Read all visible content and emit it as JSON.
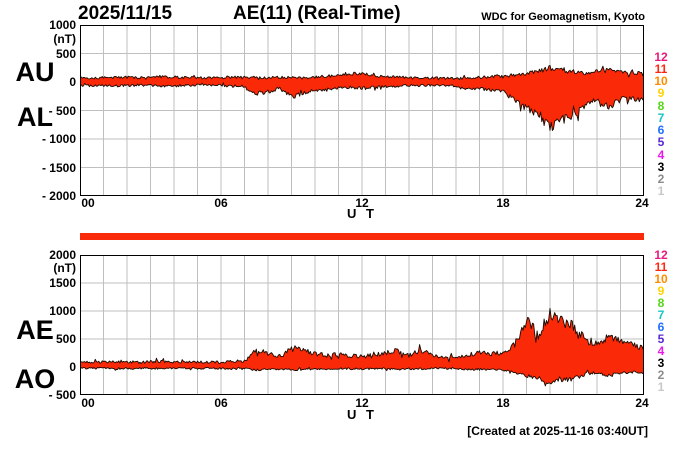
{
  "header": {
    "date": "2025/11/15",
    "title": "AE(11) (Real-Time)",
    "source": "WDC for Geomagnetism, Kyoto"
  },
  "footer": {
    "created_at": "[Created at 2025-11-16 03:40UT]"
  },
  "colors": {
    "trace_fill": "#fa2a08",
    "trace_stroke": "#1c0a00",
    "grid": "#bfbfbf",
    "frame": "#000000",
    "availability_bar": "#f92b0b"
  },
  "station_count_scale": {
    "labels": [
      "12",
      "11",
      "10",
      "9",
      "8",
      "7",
      "6",
      "5",
      "4",
      "3",
      "2",
      "1"
    ],
    "colors": [
      "#e8187d",
      "#ff2812",
      "#ff8c00",
      "#ffd200",
      "#55d515",
      "#15c5c5",
      "#2070ff",
      "#5a28d5",
      "#e818e8",
      "#000000",
      "#8c8c8c",
      "#c8c8c8"
    ]
  },
  "top_panel": {
    "left_labels": [
      "AU",
      "AL"
    ],
    "unit": "(nT)",
    "ytick_labels": [
      "1000",
      "500",
      "0",
      "- 500",
      "- 1000",
      "- 1500",
      "- 2000"
    ],
    "xtick_labels": [
      "00",
      "06",
      "12",
      "18",
      "24"
    ],
    "xlabel": "U T"
  },
  "bottom_panel": {
    "left_labels": [
      "AE",
      "AO"
    ],
    "unit": "(nT)",
    "ytick_labels": [
      "2000",
      "1500",
      "1000",
      "500",
      "0",
      "- 500"
    ],
    "xtick_labels": [
      "00",
      "06",
      "12",
      "18",
      "24"
    ],
    "xlabel": "U T"
  },
  "chart_data": [
    {
      "type": "area",
      "title": "AU / AL auroral electrojet indices, 2025/11/15 (nT)",
      "xlabel": "U T",
      "ylabel": "nT",
      "xlim": [
        0,
        24
      ],
      "ylim": [
        -2000,
        1000
      ],
      "grid": true,
      "x_hours": [
        0,
        0.5,
        1,
        1.5,
        2,
        2.5,
        3,
        3.5,
        4,
        4.5,
        5,
        5.5,
        6,
        6.5,
        7,
        7.5,
        8,
        8.5,
        9,
        9.5,
        10,
        10.5,
        11,
        11.5,
        12,
        12.5,
        13,
        13.5,
        14,
        14.5,
        15,
        15.5,
        16,
        16.5,
        17,
        17.5,
        18,
        18.5,
        19,
        19.5,
        20,
        20.5,
        21,
        21.5,
        22,
        22.5,
        23,
        23.5,
        24
      ],
      "series": [
        {
          "name": "AU",
          "values": [
            80,
            70,
            75,
            85,
            80,
            70,
            85,
            95,
            85,
            75,
            80,
            70,
            75,
            85,
            90,
            75,
            70,
            85,
            75,
            70,
            90,
            100,
            120,
            150,
            140,
            115,
            95,
            85,
            75,
            70,
            75,
            65,
            60,
            70,
            80,
            95,
            90,
            115,
            150,
            185,
            250,
            205,
            165,
            150,
            185,
            205,
            175,
            160,
            170
          ]
        },
        {
          "name": "AL",
          "values": [
            -70,
            -60,
            -65,
            -70,
            -60,
            -55,
            -60,
            -70,
            -65,
            -60,
            -60,
            -55,
            -60,
            -70,
            -80,
            -220,
            -170,
            -110,
            -260,
            -190,
            -150,
            -120,
            -100,
            -95,
            -110,
            -95,
            -80,
            -70,
            -60,
            -60,
            -55,
            -60,
            -65,
            -130,
            -110,
            -150,
            -170,
            -320,
            -460,
            -560,
            -790,
            -680,
            -600,
            -380,
            -300,
            -430,
            -310,
            -280,
            -330
          ]
        }
      ]
    },
    {
      "type": "area",
      "title": "AE / AO auroral electrojet indices, 2025/11/15 (nT)",
      "xlabel": "U T",
      "ylabel": "nT",
      "xlim": [
        0,
        24
      ],
      "ylim": [
        -500,
        2000
      ],
      "grid": true,
      "x_hours": [
        0,
        0.5,
        1,
        1.5,
        2,
        2.5,
        3,
        3.5,
        4,
        4.5,
        5,
        5.5,
        6,
        6.5,
        7,
        7.5,
        8,
        8.5,
        9,
        9.5,
        10,
        10.5,
        11,
        11.5,
        12,
        12.5,
        13,
        13.5,
        14,
        14.5,
        15,
        15.5,
        16,
        16.5,
        17,
        17.5,
        18,
        18.5,
        19,
        19.5,
        20,
        20.5,
        21,
        21.5,
        22,
        22.5,
        23,
        23.5,
        24
      ],
      "series": [
        {
          "name": "AE",
          "values": [
            90,
            85,
            90,
            95,
            90,
            85,
            95,
            100,
            90,
            85,
            90,
            85,
            90,
            95,
            110,
            290,
            240,
            190,
            330,
            300,
            240,
            210,
            230,
            200,
            190,
            210,
            260,
            290,
            210,
            300,
            210,
            150,
            180,
            220,
            260,
            230,
            260,
            400,
            850,
            560,
            950,
            810,
            730,
            480,
            420,
            510,
            460,
            410,
            310
          ]
        },
        {
          "name": "AO",
          "values": [
            -25,
            -20,
            -25,
            -30,
            -25,
            -20,
            -25,
            -30,
            -25,
            -20,
            -25,
            -20,
            -25,
            -30,
            -30,
            -50,
            -40,
            -35,
            -55,
            -45,
            -40,
            -35,
            -30,
            -30,
            -35,
            -30,
            -30,
            -35,
            -30,
            -35,
            -25,
            -25,
            -30,
            -45,
            -40,
            -45,
            -50,
            -90,
            -160,
            -190,
            -270,
            -230,
            -210,
            -130,
            -100,
            -160,
            -110,
            -95,
            -120
          ]
        }
      ]
    }
  ]
}
